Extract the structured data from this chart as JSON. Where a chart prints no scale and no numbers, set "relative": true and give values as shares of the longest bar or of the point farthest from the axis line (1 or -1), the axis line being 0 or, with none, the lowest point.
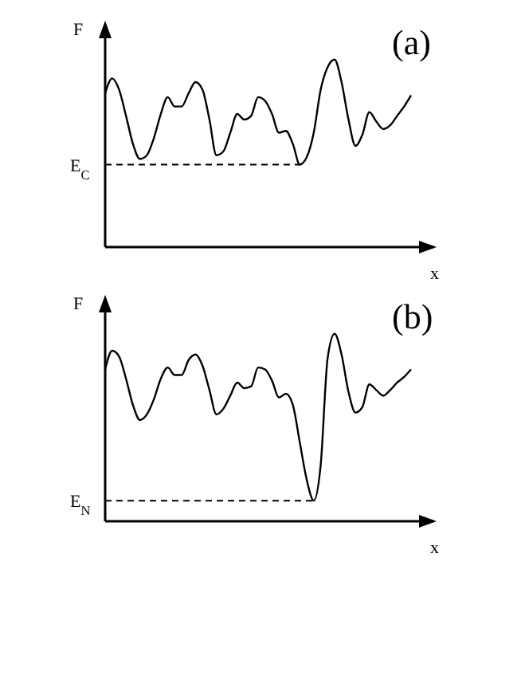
{
  "chart_data": [
    {
      "type": "line",
      "relative": true,
      "marker": "none",
      "line_style": "solid",
      "xlabel": "x",
      "ylabel": "F",
      "annotations": [
        "(a)"
      ],
      "categories": [
        null,
        null,
        null,
        null,
        null,
        null,
        null,
        null,
        null,
        null,
        null,
        null,
        null,
        null,
        null,
        null,
        null,
        null,
        null,
        null,
        null,
        null,
        null,
        null,
        null,
        null,
        null,
        null,
        null,
        null,
        null,
        null,
        null,
        null,
        null,
        null,
        null,
        null,
        null,
        null,
        null,
        null,
        null,
        null,
        null
      ],
      "series": [
        {
          "color": "#000000",
          "values": [
            0.82,
            0.9,
            0.84,
            0.7,
            0.55,
            0.47,
            0.49,
            0.58,
            0.71,
            0.8,
            0.75,
            0.75,
            0.82,
            0.88,
            0.84,
            0.68,
            0.49,
            0.51,
            0.61,
            0.71,
            0.68,
            0.7,
            0.8,
            0.78,
            0.71,
            0.61,
            0.62,
            0.55,
            0.44,
            0.48,
            0.61,
            0.84,
            0.96,
            1,
            0.88,
            0.68,
            0.54,
            0.6,
            0.72,
            0.67,
            0.63,
            0.65,
            0.7,
            0.75,
            0.81
          ]
        }
      ],
      "ref_lines": [
        {
          "axis": "y",
          "value": 0.44,
          "label": "E$_{C}$",
          "line_style": "dashed",
          "color": "#000000"
        }
      ]
    },
    {
      "type": "line",
      "relative": true,
      "marker": "none",
      "line_style": "solid",
      "xlabel": "x",
      "ylabel": "F",
      "annotations": [
        "(b)"
      ],
      "categories": [
        null,
        null,
        null,
        null,
        null,
        null,
        null,
        null,
        null,
        null,
        null,
        null,
        null,
        null,
        null,
        null,
        null,
        null,
        null,
        null,
        null,
        null,
        null,
        null,
        null,
        null,
        null,
        null,
        null,
        null,
        null,
        null,
        null,
        null,
        null,
        null,
        null,
        null,
        null,
        null,
        null,
        null,
        null,
        null,
        null
      ],
      "series": [
        {
          "color": "#000000",
          "values": [
            0.81,
            0.91,
            0.88,
            0.76,
            0.62,
            0.54,
            0.57,
            0.65,
            0.76,
            0.82,
            0.78,
            0.78,
            0.86,
            0.89,
            0.83,
            0.7,
            0.57,
            0.6,
            0.67,
            0.74,
            0.71,
            0.72,
            0.82,
            0.81,
            0.75,
            0.66,
            0.68,
            0.62,
            0.42,
            0.22,
            0.11,
            0.3,
            0.87,
            1,
            0.89,
            0.69,
            0.58,
            0.61,
            0.73,
            0.7,
            0.67,
            0.7,
            0.74,
            0.77,
            0.81
          ]
        }
      ],
      "ref_lines": [
        {
          "axis": "y",
          "value": 0.11,
          "label": "E$_{N}$",
          "line_style": "dashed",
          "color": "#000000"
        }
      ]
    }
  ]
}
